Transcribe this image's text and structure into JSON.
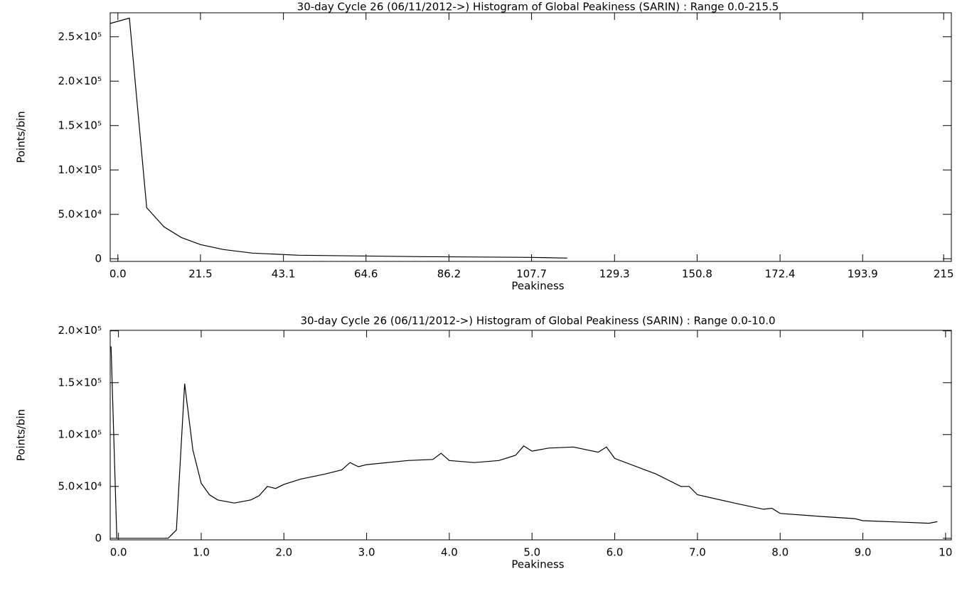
{
  "chart_data": [
    {
      "type": "line",
      "title": "30-day Cycle 26 (06/11/2012->) Histogram of Global Peakiness (SARIN) :  Range 0.0-215.5",
      "xlabel": "Peakiness",
      "ylabel": "Points/bin",
      "color": "#000000",
      "x": [
        -2,
        3,
        7.5,
        12,
        16.5,
        21.5,
        27.5,
        35,
        47,
        63,
        79,
        107,
        117
      ],
      "values": [
        265000,
        271000,
        57500,
        36000,
        24000,
        16000,
        10400,
        6400,
        4000,
        3200,
        2400,
        1600,
        800
      ],
      "xlim": [
        -2,
        217
      ],
      "xticks": [
        {
          "value": 0,
          "label": "0.0"
        },
        21.5,
        43.1,
        64.6,
        86.2,
        107.7,
        129.3,
        150.8,
        172.4,
        193.9,
        215
      ],
      "ylim": [
        -3000,
        277000
      ],
      "yticks": [
        0,
        {
          "value": 50000,
          "label": "5.0×10⁴"
        },
        {
          "value": 100000,
          "label": "1.0×10⁵"
        },
        {
          "value": 150000,
          "label": "1.5×10⁵"
        },
        {
          "value": 200000,
          "label": "2.0×10⁵"
        },
        {
          "value": 250000,
          "label": "2.5×10⁵"
        }
      ]
    },
    {
      "type": "line",
      "title": "30-day Cycle 26 (06/11/2012->) Histogram of Global Peakiness (SARIN) :  Range 0.0-10.0",
      "xlabel": "Peakiness",
      "ylabel": "Points/bin",
      "color": "#000000",
      "x": [
        -0.09,
        -0.02,
        0.6,
        0.7,
        0.8,
        0.9,
        1.0,
        1.1,
        1.2,
        1.4,
        1.6,
        1.7,
        1.8,
        1.9,
        2.0,
        2.2,
        2.5,
        2.7,
        2.8,
        2.9,
        3.0,
        3.5,
        3.8,
        3.9,
        4.0,
        4.3,
        4.6,
        4.8,
        4.9,
        5.0,
        5.2,
        5.5,
        5.8,
        5.9,
        6.0,
        6.5,
        6.8,
        6.9,
        7.0,
        7.5,
        7.8,
        7.9,
        8.0,
        8.5,
        8.9,
        9.0,
        9.5,
        9.8,
        9.9
      ],
      "values": [
        185000,
        0,
        0,
        8000,
        149000,
        85000,
        53000,
        42000,
        37000,
        34000,
        37000,
        41000,
        50000,
        48000,
        52000,
        57000,
        62000,
        66000,
        73000,
        69000,
        71000,
        75000,
        76000,
        82000,
        75000,
        73000,
        75000,
        80000,
        89000,
        84000,
        87000,
        88000,
        83000,
        88000,
        77000,
        62000,
        50000,
        50000,
        42000,
        33000,
        28000,
        29000,
        24000,
        21000,
        19000,
        17000,
        15500,
        14500,
        16000
      ],
      "xlim": [
        -0.1,
        10.07
      ],
      "xticks": [
        {
          "value": 0,
          "label": "0.0"
        },
        {
          "value": 1,
          "label": "1.0"
        },
        {
          "value": 2,
          "label": "2.0"
        },
        {
          "value": 3,
          "label": "3.0"
        },
        {
          "value": 4,
          "label": "4.0"
        },
        {
          "value": 5,
          "label": "5.0"
        },
        {
          "value": 6,
          "label": "6.0"
        },
        {
          "value": 7,
          "label": "7.0"
        },
        {
          "value": 8,
          "label": "8.0"
        },
        {
          "value": 9,
          "label": "9.0"
        },
        10
      ],
      "ylim": [
        -1500,
        200500
      ],
      "yticks": [
        0,
        {
          "value": 50000,
          "label": "5.0×10⁴"
        },
        {
          "value": 100000,
          "label": "1.0×10⁵"
        },
        {
          "value": 150000,
          "label": "1.5×10⁵"
        },
        {
          "value": 200000,
          "label": "2.0×10⁵"
        }
      ]
    }
  ]
}
